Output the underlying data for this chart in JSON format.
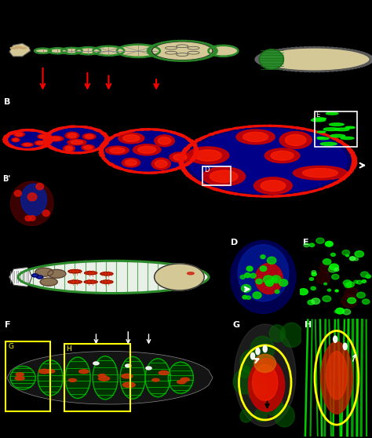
{
  "fig_width": 4.74,
  "fig_height": 5.58,
  "dpi": 100,
  "background_color": "#000000",
  "beige": "#d4c896",
  "green_border": "#2a8a2a",
  "colors": {
    "red": "#ff2200",
    "green": "#00ff00",
    "blue": "#0000cc",
    "beige": "#d4c896",
    "green_b": "#2a8a2a",
    "white": "#ffffff",
    "yellow": "#ffff00",
    "black": "#000000"
  }
}
